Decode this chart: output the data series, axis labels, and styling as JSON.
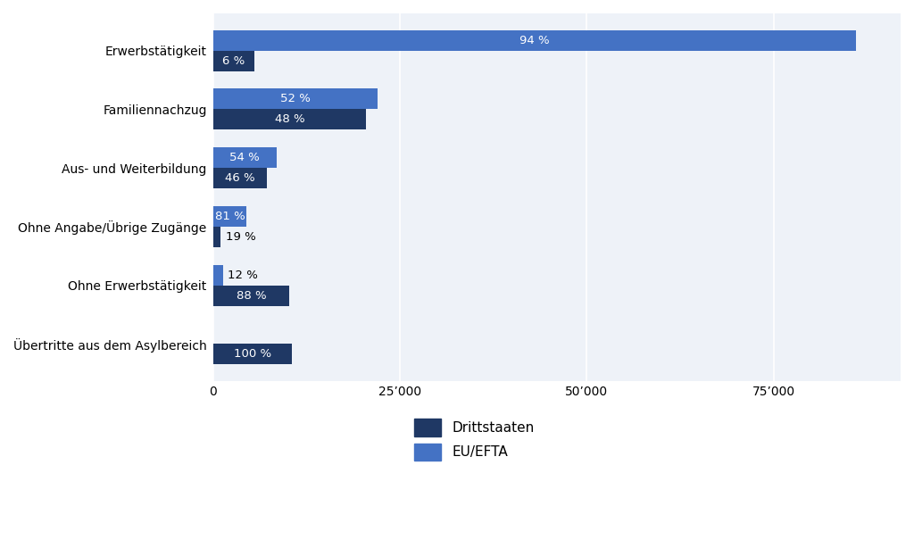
{
  "categories": [
    "Erwerbstätigkeit",
    "Familiennachzug",
    "Aus- und Weiterbildung",
    "Ohne Angabe/Übrige Zugänge",
    "Ohne Erwerbstätigkeit",
    "Übertritte aus dem Asylbereich"
  ],
  "eu_efta_values": [
    86000,
    22000,
    8500,
    4500,
    1400,
    0
  ],
  "drittstaaten_values": [
    5500,
    20500,
    7200,
    1050,
    10200,
    10500
  ],
  "eu_efta_pct": [
    "94 %",
    "52 %",
    "54 %",
    "81 %",
    "12 %",
    ""
  ],
  "drittstaaten_pct": [
    "6 %",
    "48 %",
    "46 %",
    "19 %",
    "88 %",
    "100 %"
  ],
  "eu_efta_color": "#4472C4",
  "drittstaaten_color": "#1F3864",
  "background_color": "#EEF2F8",
  "bar_height": 0.35,
  "xlim": [
    0,
    92000
  ],
  "xticks": [
    0,
    25000,
    50000,
    75000
  ],
  "xticklabels": [
    "0",
    "25’000",
    "50’000",
    "75’000"
  ],
  "legend_drittstaaten": "Drittstaaten",
  "legend_eu_efta": "EU/EFTA",
  "label_fontsize": 9.5,
  "tick_fontsize": 10,
  "legend_fontsize": 11,
  "ytick_fontsize": 10
}
